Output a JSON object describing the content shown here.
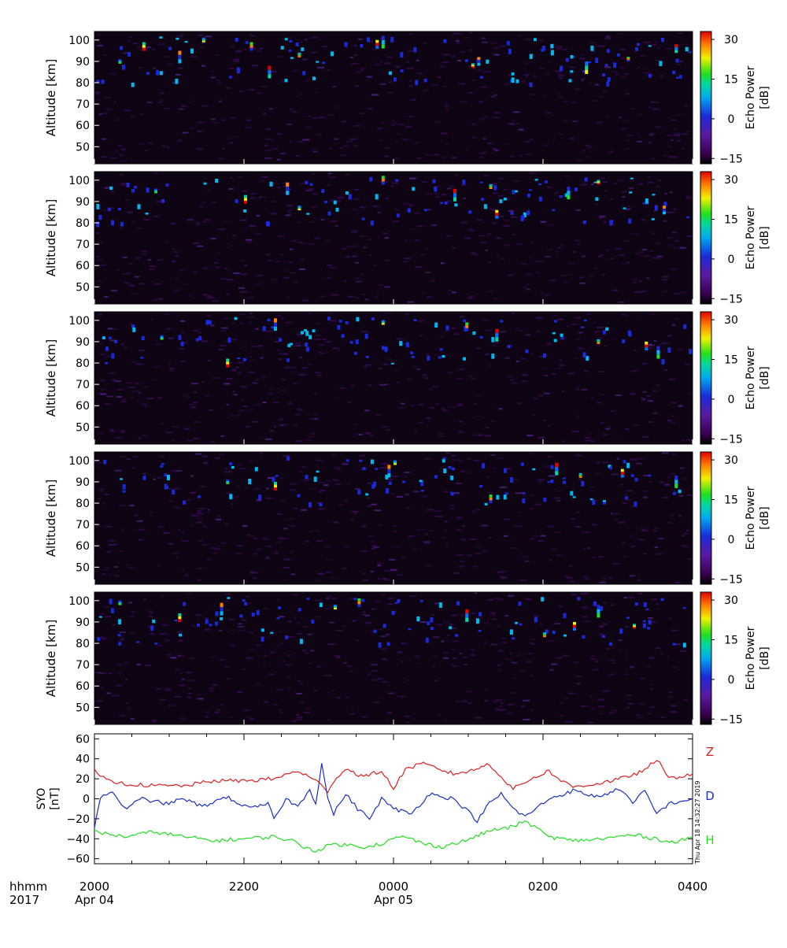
{
  "chart_data": [
    {
      "type": "heatmap",
      "panel": 1,
      "ylabel": "Altitude [km]",
      "yticks": [
        50,
        60,
        70,
        80,
        90,
        100
      ],
      "ylim": [
        42,
        104
      ],
      "colorbar": {
        "label_line1": "Echo Power",
        "label_line2": "[dB]",
        "ticks": [
          -15,
          0,
          15,
          30
        ],
        "range": [
          -17,
          33
        ]
      },
      "strong_echoes": [
        {
          "t": 0.04,
          "alt": 90
        },
        {
          "t": 0.08,
          "alt": 97
        },
        {
          "t": 0.14,
          "alt": 92
        },
        {
          "t": 0.18,
          "alt": 100
        },
        {
          "t": 0.26,
          "alt": 97
        },
        {
          "t": 0.29,
          "alt": 85
        },
        {
          "t": 0.34,
          "alt": 93
        },
        {
          "t": 0.47,
          "alt": 98
        },
        {
          "t": 0.48,
          "alt": 99
        },
        {
          "t": 0.63,
          "alt": 88
        },
        {
          "t": 0.64,
          "alt": 90
        },
        {
          "t": 0.82,
          "alt": 87
        },
        {
          "t": 0.89,
          "alt": 91
        },
        {
          "t": 0.97,
          "alt": 96
        }
      ]
    },
    {
      "type": "heatmap",
      "panel": 2,
      "ylabel": "Altitude [km]",
      "yticks": [
        50,
        60,
        70,
        80,
        90,
        100
      ],
      "ylim": [
        42,
        104
      ],
      "colorbar": {
        "label_line1": "Echo Power",
        "label_line2": "[dB]",
        "ticks": [
          -15,
          0,
          15,
          30
        ],
        "range": [
          -17,
          33
        ]
      },
      "strong_echoes": [
        {
          "t": 0.1,
          "alt": 95
        },
        {
          "t": 0.25,
          "alt": 91
        },
        {
          "t": 0.32,
          "alt": 96
        },
        {
          "t": 0.34,
          "alt": 87
        },
        {
          "t": 0.48,
          "alt": 100
        },
        {
          "t": 0.6,
          "alt": 93
        },
        {
          "t": 0.66,
          "alt": 97
        },
        {
          "t": 0.67,
          "alt": 84
        },
        {
          "t": 0.79,
          "alt": 94
        },
        {
          "t": 0.84,
          "alt": 99
        },
        {
          "t": 0.95,
          "alt": 86
        }
      ]
    },
    {
      "type": "heatmap",
      "panel": 3,
      "ylabel": "Altitude [km]",
      "yticks": [
        50,
        60,
        70,
        80,
        90,
        100
      ],
      "ylim": [
        42,
        104
      ],
      "colorbar": {
        "label_line1": "Echo Power",
        "label_line2": "[dB]",
        "ticks": [
          -15,
          0,
          15,
          30
        ],
        "range": [
          -17,
          33
        ]
      },
      "strong_echoes": [
        {
          "t": 0.11,
          "alt": 92
        },
        {
          "t": 0.22,
          "alt": 80
        },
        {
          "t": 0.3,
          "alt": 98
        },
        {
          "t": 0.48,
          "alt": 99
        },
        {
          "t": 0.62,
          "alt": 97
        },
        {
          "t": 0.67,
          "alt": 93
        },
        {
          "t": 0.84,
          "alt": 90
        },
        {
          "t": 0.92,
          "alt": 88
        },
        {
          "t": 0.94,
          "alt": 85
        }
      ]
    },
    {
      "type": "heatmap",
      "panel": 4,
      "ylabel": "Altitude [km]",
      "yticks": [
        50,
        60,
        70,
        80,
        90,
        100
      ],
      "ylim": [
        42,
        104
      ],
      "colorbar": {
        "label_line1": "Echo Power",
        "label_line2": "[dB]",
        "ticks": [
          -15,
          0,
          15,
          30
        ],
        "range": [
          -17,
          33
        ]
      },
      "strong_echoes": [
        {
          "t": 0.22,
          "alt": 90
        },
        {
          "t": 0.3,
          "alt": 88
        },
        {
          "t": 0.49,
          "alt": 95
        },
        {
          "t": 0.5,
          "alt": 99
        },
        {
          "t": 0.66,
          "alt": 82
        },
        {
          "t": 0.77,
          "alt": 96
        },
        {
          "t": 0.81,
          "alt": 93
        },
        {
          "t": 0.88,
          "alt": 94
        },
        {
          "t": 0.97,
          "alt": 90
        }
      ]
    },
    {
      "type": "heatmap",
      "panel": 5,
      "ylabel": "Altitude [km]",
      "yticks": [
        50,
        60,
        70,
        80,
        90,
        100
      ],
      "ylim": [
        42,
        104
      ],
      "colorbar": {
        "label_line1": "Echo Power",
        "label_line2": "[dB]",
        "ticks": [
          -15,
          0,
          15,
          30
        ],
        "range": [
          -17,
          33
        ]
      },
      "strong_echoes": [
        {
          "t": 0.04,
          "alt": 99
        },
        {
          "t": 0.14,
          "alt": 92
        },
        {
          "t": 0.21,
          "alt": 96
        },
        {
          "t": 0.4,
          "alt": 97
        },
        {
          "t": 0.44,
          "alt": 99
        },
        {
          "t": 0.62,
          "alt": 93
        },
        {
          "t": 0.75,
          "alt": 84
        },
        {
          "t": 0.8,
          "alt": 88
        },
        {
          "t": 0.84,
          "alt": 95
        },
        {
          "t": 0.9,
          "alt": 88
        }
      ]
    },
    {
      "type": "line",
      "panel": 6,
      "ylabel_line1": "SYO",
      "ylabel_line2": "[nT]",
      "ylim": [
        -65,
        65
      ],
      "yticks": [
        -60,
        -40,
        -20,
        0,
        20,
        40,
        60
      ],
      "series": [
        {
          "name": "Z",
          "color": "#dd2020",
          "points": [
            [
              0,
              28
            ],
            [
              0.02,
              18
            ],
            [
              0.05,
              15
            ],
            [
              0.1,
              13
            ],
            [
              0.15,
              13
            ],
            [
              0.2,
              18
            ],
            [
              0.25,
              18
            ],
            [
              0.3,
              20
            ],
            [
              0.34,
              28
            ],
            [
              0.37,
              18
            ],
            [
              0.39,
              8
            ],
            [
              0.4,
              18
            ],
            [
              0.42,
              30
            ],
            [
              0.45,
              22
            ],
            [
              0.48,
              28
            ],
            [
              0.5,
              10
            ],
            [
              0.52,
              30
            ],
            [
              0.55,
              35
            ],
            [
              0.6,
              25
            ],
            [
              0.63,
              28
            ],
            [
              0.66,
              35
            ],
            [
              0.68,
              22
            ],
            [
              0.7,
              10
            ],
            [
              0.73,
              20
            ],
            [
              0.76,
              28
            ],
            [
              0.78,
              18
            ],
            [
              0.8,
              12
            ],
            [
              0.84,
              15
            ],
            [
              0.88,
              20
            ],
            [
              0.92,
              28
            ],
            [
              0.94,
              40
            ],
            [
              0.96,
              20
            ],
            [
              1.0,
              25
            ]
          ]
        },
        {
          "name": "D",
          "color": "#1a2ec8",
          "points": [
            [
              0,
              -28
            ],
            [
              0.01,
              0
            ],
            [
              0.03,
              8
            ],
            [
              0.05,
              -10
            ],
            [
              0.08,
              0
            ],
            [
              0.12,
              -5
            ],
            [
              0.15,
              0
            ],
            [
              0.18,
              -8
            ],
            [
              0.22,
              2
            ],
            [
              0.26,
              -10
            ],
            [
              0.29,
              -5
            ],
            [
              0.3,
              -20
            ],
            [
              0.32,
              0
            ],
            [
              0.34,
              -8
            ],
            [
              0.36,
              10
            ],
            [
              0.37,
              -5
            ],
            [
              0.38,
              36
            ],
            [
              0.39,
              0
            ],
            [
              0.4,
              -15
            ],
            [
              0.42,
              5
            ],
            [
              0.44,
              -10
            ],
            [
              0.46,
              -20
            ],
            [
              0.48,
              0
            ],
            [
              0.5,
              -10
            ],
            [
              0.53,
              -15
            ],
            [
              0.56,
              5
            ],
            [
              0.6,
              0
            ],
            [
              0.62,
              -10
            ],
            [
              0.64,
              -22
            ],
            [
              0.66,
              -5
            ],
            [
              0.68,
              5
            ],
            [
              0.7,
              -10
            ],
            [
              0.72,
              -18
            ],
            [
              0.76,
              0
            ],
            [
              0.8,
              8
            ],
            [
              0.84,
              2
            ],
            [
              0.88,
              10
            ],
            [
              0.9,
              -5
            ],
            [
              0.92,
              8
            ],
            [
              0.94,
              -15
            ],
            [
              0.96,
              -5
            ],
            [
              1.0,
              0
            ]
          ]
        },
        {
          "name": "H",
          "color": "#22dd22",
          "points": [
            [
              0,
              -33
            ],
            [
              0.05,
              -38
            ],
            [
              0.1,
              -33
            ],
            [
              0.15,
              -38
            ],
            [
              0.2,
              -42
            ],
            [
              0.25,
              -40
            ],
            [
              0.3,
              -38
            ],
            [
              0.33,
              -42
            ],
            [
              0.35,
              -48
            ],
            [
              0.37,
              -52
            ],
            [
              0.4,
              -45
            ],
            [
              0.45,
              -48
            ],
            [
              0.48,
              -45
            ],
            [
              0.5,
              -40
            ],
            [
              0.52,
              -38
            ],
            [
              0.55,
              -45
            ],
            [
              0.58,
              -48
            ],
            [
              0.62,
              -42
            ],
            [
              0.66,
              -32
            ],
            [
              0.7,
              -28
            ],
            [
              0.72,
              -22
            ],
            [
              0.74,
              -30
            ],
            [
              0.76,
              -38
            ],
            [
              0.8,
              -42
            ],
            [
              0.85,
              -40
            ],
            [
              0.9,
              -36
            ],
            [
              0.94,
              -40
            ],
            [
              0.97,
              -44
            ],
            [
              1.0,
              -38
            ]
          ]
        }
      ]
    }
  ],
  "time_axis": {
    "row1_label": "hhmm",
    "row2_label": "2017",
    "ticks": [
      {
        "hhmm": "2000",
        "date": "Apr 04",
        "frac": 0.0
      },
      {
        "hhmm": "2200",
        "date": "",
        "frac": 0.25
      },
      {
        "hhmm": "0000",
        "date": "Apr 05",
        "frac": 0.5
      },
      {
        "hhmm": "0200",
        "date": "",
        "frac": 0.75
      },
      {
        "hhmm": "0400",
        "date": "",
        "frac": 1.0
      }
    ]
  },
  "timestamp": "Thu Apr 18 14:32:27 2019"
}
